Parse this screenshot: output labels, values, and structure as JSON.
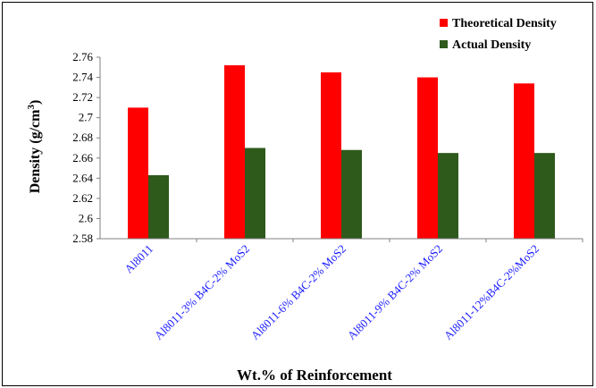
{
  "chart_data": {
    "type": "bar",
    "categories": [
      "Al8011",
      "Al8011-3% B4C-2% MoS2",
      "Al8011-6% B4C-2% MoS2",
      "Al8011-9% B4C-2% MoS2",
      "Al8011-12%B4C-2%MoS2"
    ],
    "series": [
      {
        "name": "Theoretical Density",
        "color": "#ff0000",
        "values": [
          2.71,
          2.752,
          2.745,
          2.74,
          2.734
        ]
      },
      {
        "name": "Actual Density",
        "color": "#2e5a1c",
        "values": [
          2.643,
          2.67,
          2.668,
          2.665,
          2.665
        ]
      }
    ],
    "title": "",
    "ylabel_main": "Density (g/cm",
    "ylabel_sup": "3",
    "ylabel_close": ")",
    "xlabel": "Wt.% of Reinforcement",
    "ylim": [
      2.58,
      2.76
    ],
    "yticks": [
      "2.58",
      "2.6",
      "2.62",
      "2.64",
      "2.66",
      "2.68",
      "2.7",
      "2.72",
      "2.74",
      "2.76"
    ],
    "grid": false,
    "legend_position": "top-right"
  }
}
